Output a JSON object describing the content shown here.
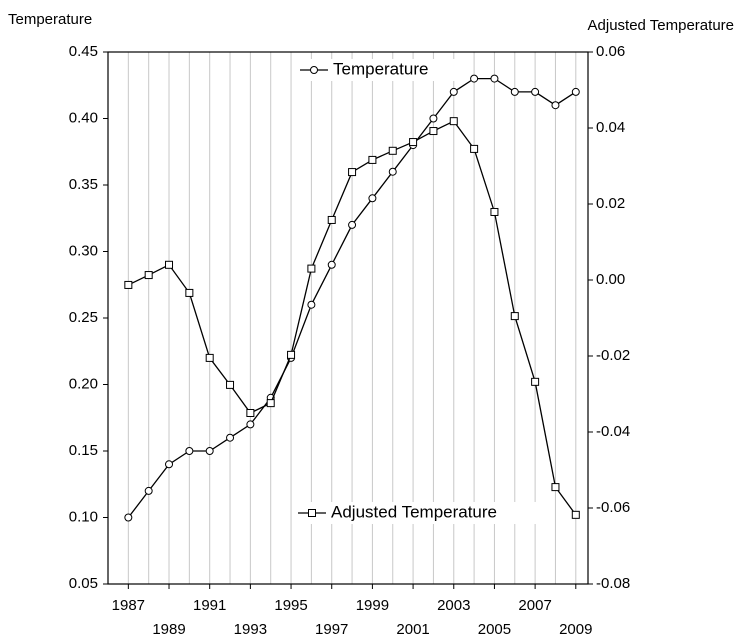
{
  "chart_data": {
    "type": "line",
    "ylabel": "Temperature",
    "y2label": "Adjusted Temperature",
    "x": [
      1987,
      1988,
      1989,
      1990,
      1991,
      1992,
      1993,
      1994,
      1995,
      1996,
      1997,
      1998,
      1999,
      2000,
      2001,
      2002,
      2003,
      2004,
      2005,
      2006,
      2007,
      2008,
      2009
    ],
    "series": [
      {
        "name": "Temperature",
        "color": "#000000",
        "marker": "circle",
        "axis": "y",
        "values": [
          0.1,
          0.12,
          0.14,
          0.15,
          0.15,
          0.16,
          0.17,
          0.19,
          0.22,
          0.26,
          0.29,
          0.32,
          0.34,
          0.36,
          0.38,
          0.4,
          0.42,
          0.43,
          0.43,
          0.42,
          0.42,
          0.41,
          0.42
        ]
      },
      {
        "name": "Adjusted Temperature",
        "color": "#000000",
        "marker": "square",
        "axis": "y2",
        "values": [
          -0.0013,
          0.0013,
          0.004,
          -0.0034,
          -0.0205,
          -0.0276,
          -0.035,
          -0.0324,
          -0.0197,
          0.003,
          0.0158,
          0.0284,
          0.0316,
          0.034,
          0.0363,
          0.0392,
          0.0418,
          0.0345,
          0.0179,
          -0.0095,
          -0.0268,
          -0.0545,
          -0.0618
        ]
      }
    ],
    "xlim": [
      1986,
      2009.6
    ],
    "xticks": [
      1987,
      1989,
      1991,
      1993,
      1995,
      1997,
      1999,
      2001,
      2003,
      2005,
      2007,
      2009
    ],
    "ylim": [
      0.05,
      0.45
    ],
    "yticks": [
      {
        "value": 0.05,
        "label": "0.05"
      },
      {
        "value": 0.1,
        "label": "0.10"
      },
      {
        "value": 0.15,
        "label": "0.15"
      },
      {
        "value": 0.2,
        "label": "0.20"
      },
      {
        "value": 0.25,
        "label": "0.25"
      },
      {
        "value": 0.3,
        "label": "0.30"
      },
      {
        "value": 0.35,
        "label": "0.35"
      },
      {
        "value": 0.4,
        "label": "0.40"
      },
      {
        "value": 0.45,
        "label": "0.45"
      }
    ],
    "y2lim": [
      -0.08,
      0.06
    ],
    "y2ticks": [
      {
        "value": -0.08,
        "label": "-0.08"
      },
      {
        "value": -0.06,
        "label": "-0.06"
      },
      {
        "value": -0.04,
        "label": "-0.04"
      },
      {
        "value": -0.02,
        "label": "-0.02"
      },
      {
        "value": 0,
        "label": "0.00"
      },
      {
        "value": 0.02,
        "label": "0.02"
      },
      {
        "value": 0.04,
        "label": "0.04"
      },
      {
        "value": 0.06,
        "label": "0.06"
      }
    ],
    "grid": "x"
  }
}
